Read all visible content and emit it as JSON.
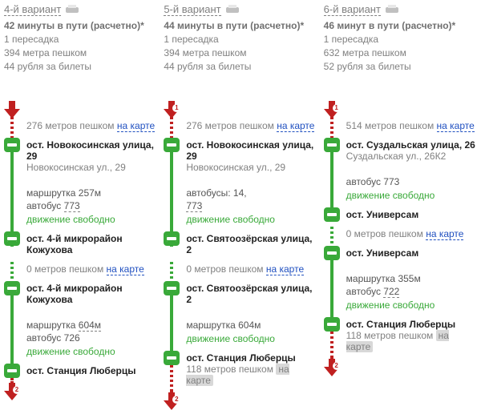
{
  "colors": {
    "arrow_fill": "#c02020",
    "green": "#39a939",
    "link_blue": "#2050c0",
    "grey": "#808080"
  },
  "variants": [
    {
      "title": "4-й вариант",
      "summary_bold": "42 минуты в пути (расчетно)*",
      "summary_lines": [
        "1 пересадка",
        "394 метра пешком",
        "44 рубля за билеты"
      ],
      "start_badge": "",
      "end_badge": "2",
      "segments": [
        {
          "kind": "walk_to_stop",
          "walk": "276 метров пешком",
          "map": "на карте",
          "stop_bold": "ост. Новокосинская улица, 29",
          "stop_addr": "Новокосинская ул., 29"
        },
        {
          "kind": "ride",
          "transport": [
            {
              "label": "маршрутка",
              "num": "257м"
            },
            {
              "label": "автобус",
              "num": "773",
              "dashed": true
            }
          ],
          "traffic": "движение свободно"
        },
        {
          "kind": "stop_transfer",
          "stop_bold": "ост. 4-й микрорайон Кожухова",
          "walk": "0 метров пешком",
          "map": "на карте",
          "stop_bold2": "ост. 4-й микрорайон Кожухова"
        },
        {
          "kind": "ride",
          "transport": [
            {
              "label": "маршрутка",
              "num": "604м",
              "dashed": true
            },
            {
              "label": "автобус",
              "num": "726"
            }
          ],
          "traffic": "движение свободно"
        },
        {
          "kind": "stop_end",
          "stop_bold": "ост. Станция Люберцы"
        }
      ]
    },
    {
      "title": "5-й вариант",
      "summary_bold": "44 минуты в пути (расчетно)*",
      "summary_lines": [
        "1 пересадка",
        "394 метра пешком",
        "44 рубля за билеты"
      ],
      "start_badge": "1",
      "end_badge": "2",
      "segments": [
        {
          "kind": "walk_to_stop",
          "walk": "276 метров пешком",
          "map": "на карте",
          "stop_bold": "ост. Новокосинская улица, 29",
          "stop_addr": "Новокосинская ул., 29"
        },
        {
          "kind": "ride",
          "transport": [
            {
              "label": "автобусы:",
              "num": "14,",
              "plain": true
            },
            {
              "label": "",
              "num": "773",
              "dashed": true
            }
          ],
          "traffic": "движение свободно"
        },
        {
          "kind": "stop_transfer",
          "stop_bold": "ост. Святоозёрская улица, 2",
          "walk": "0 метров пешком",
          "map": "на карте",
          "stop_bold2": "ост. Святоозёрская улица, 2"
        },
        {
          "kind": "ride",
          "transport": [
            {
              "label": "маршрутка",
              "num": "604м"
            }
          ],
          "traffic": "движение свободно"
        },
        {
          "kind": "stop_end",
          "stop_bold": "ост. Станция Люберцы",
          "end_walk": "118 метров пешком",
          "end_map": "на карте"
        }
      ]
    },
    {
      "title": "6-й вариант",
      "summary_bold": "46 минут в пути (расчетно)*",
      "summary_lines": [
        "1 пересадка",
        "632 метра пешком",
        "52 рубля за билеты"
      ],
      "start_badge": "1",
      "end_badge": "2",
      "segments": [
        {
          "kind": "walk_to_stop",
          "walk": "514 метров пешком",
          "map": "на карте",
          "stop_bold": "ост. Суздальская улица, 26",
          "stop_addr": "Суздальская ул., 26К2"
        },
        {
          "kind": "ride",
          "transport": [
            {
              "label": "автобус",
              "num": "773"
            }
          ],
          "traffic": "движение свободно"
        },
        {
          "kind": "stop_transfer",
          "stop_bold": "ост. Универсам",
          "walk": "0 метров пешком",
          "map": "на карте",
          "stop_bold2": "ост. Универсам"
        },
        {
          "kind": "ride",
          "transport": [
            {
              "label": "маршрутка",
              "num": "355м"
            },
            {
              "label": "автобус",
              "num": "722",
              "dashed": true
            }
          ],
          "traffic": "движение свободно"
        },
        {
          "kind": "stop_end",
          "stop_bold": "ост. Станция Люберцы",
          "end_walk": "118 метров пешком",
          "end_map": "на карте"
        }
      ]
    }
  ]
}
